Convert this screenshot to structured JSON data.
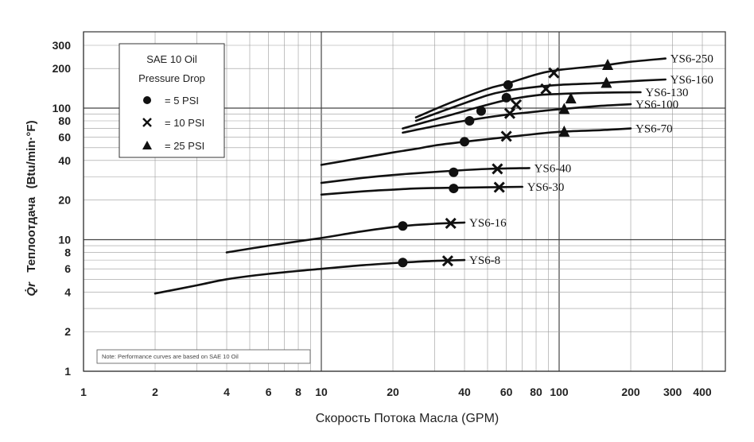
{
  "chart_data": {
    "type": "line",
    "title": "",
    "xlabel": "Скорость Потока Масла (GPM)",
    "ylabel_symbol": "Q̇r",
    "ylabel": "Теплоотдача",
    "ylabel_units": "(Btu/min·°F)",
    "xscale": "log",
    "yscale": "log",
    "xlim": [
      1,
      500
    ],
    "ylim": [
      1,
      380
    ],
    "x_ticks": [
      1,
      2,
      4,
      6,
      8,
      10,
      20,
      40,
      60,
      80,
      100,
      200,
      300,
      400
    ],
    "x_tick_labels": [
      "1",
      "2",
      "4",
      "6",
      "8",
      "10",
      "20",
      "40",
      "60",
      "80",
      "100",
      "200",
      "300",
      "400"
    ],
    "y_ticks": [
      1,
      2,
      4,
      6,
      8,
      10,
      20,
      40,
      60,
      80,
      100,
      200,
      300
    ],
    "y_tick_labels": [
      "1",
      "2",
      "4",
      "6",
      "8",
      "10",
      "20",
      "40",
      "60",
      "80",
      "100",
      "200",
      "300"
    ],
    "grid": true,
    "legend": {
      "title_line1": "SAE 10 Oil",
      "title_line2": "Pressure Drop",
      "placement": "top-left",
      "entries": [
        {
          "marker": "circle",
          "label": "= 5 PSI"
        },
        {
          "marker": "cross",
          "label": "= 10 PSI"
        },
        {
          "marker": "triangle",
          "label": "= 25 PSI"
        }
      ]
    },
    "note": "Note: Performance curves are based on SAE 10 Oil",
    "series": [
      {
        "name": "YS6-8",
        "x": [
          2,
          3,
          4,
          6,
          10,
          15,
          22,
          30,
          40
        ],
        "y": [
          3.9,
          4.5,
          5.0,
          5.5,
          6.0,
          6.4,
          6.7,
          6.9,
          7.0
        ],
        "markers": [
          {
            "type": "circle",
            "x": 22,
            "y": 6.7
          },
          {
            "type": "cross",
            "x": 34,
            "y": 6.9
          }
        ]
      },
      {
        "name": "YS6-16",
        "x": [
          4,
          6,
          10,
          15,
          22,
          30,
          40
        ],
        "y": [
          8.0,
          9.0,
          10.3,
          11.6,
          12.7,
          13.2,
          13.5
        ],
        "markers": [
          {
            "type": "circle",
            "x": 22,
            "y": 12.7
          },
          {
            "type": "cross",
            "x": 35,
            "y": 13.3
          }
        ]
      },
      {
        "name": "YS6-30",
        "x": [
          10,
          15,
          20,
          25,
          35,
          50,
          70
        ],
        "y": [
          22,
          23.3,
          24,
          24.5,
          24.8,
          25.0,
          25.2
        ],
        "markers": [
          {
            "type": "circle",
            "x": 36,
            "y": 24.5
          },
          {
            "type": "cross",
            "x": 56,
            "y": 25
          }
        ]
      },
      {
        "name": "YS6-40",
        "x": [
          10,
          15,
          20,
          25,
          35,
          50,
          75
        ],
        "y": [
          27,
          29.5,
          31,
          32,
          33.3,
          34.5,
          35.0
        ],
        "markers": [
          {
            "type": "circle",
            "x": 36,
            "y": 32.5
          },
          {
            "type": "cross",
            "x": 55,
            "y": 34.5
          }
        ]
      },
      {
        "name": "YS6-70",
        "x": [
          10,
          15,
          20,
          25,
          30,
          40,
          50,
          70,
          100,
          150,
          200
        ],
        "y": [
          37,
          42,
          46,
          49,
          52,
          55.5,
          58,
          62,
          66,
          68,
          70
        ],
        "markers": [
          {
            "type": "circle",
            "x": 40,
            "y": 55.5
          },
          {
            "type": "cross",
            "x": 60,
            "y": 61
          },
          {
            "type": "triangle",
            "x": 105,
            "y": 66
          }
        ]
      },
      {
        "name": "YS6-100",
        "x": [
          22,
          30,
          40,
          50,
          60,
          80,
          100,
          150,
          200
        ],
        "y": [
          65,
          73,
          80,
          85,
          89,
          94,
          98,
          104,
          107
        ],
        "markers": [
          {
            "type": "circle",
            "x": 42,
            "y": 80
          },
          {
            "type": "circle",
            "x": 47,
            "y": 95
          },
          {
            "type": "cross",
            "x": 62,
            "y": 91
          },
          {
            "type": "triangle",
            "x": 105,
            "y": 98
          }
        ]
      },
      {
        "name": "YS6-130",
        "x": [
          22,
          30,
          40,
          50,
          60,
          80,
          100,
          150,
          220
        ],
        "y": [
          70,
          82,
          95,
          106,
          115,
          125,
          128,
          131,
          132
        ],
        "markers": [
          {
            "type": "circle",
            "x": 60,
            "y": 120
          },
          {
            "type": "cross",
            "x": 66,
            "y": 106
          },
          {
            "type": "triangle",
            "x": 112,
            "y": 118
          }
        ]
      },
      {
        "name": "YS6-160",
        "x": [
          25,
          35,
          50,
          60,
          80,
          100,
          150,
          200,
          280
        ],
        "y": [
          80,
          100,
          125,
          135,
          145,
          150,
          155,
          160,
          165
        ],
        "markers": [
          {
            "type": "cross",
            "x": 88,
            "y": 140
          },
          {
            "type": "triangle",
            "x": 158,
            "y": 155
          }
        ]
      },
      {
        "name": "YS6-250",
        "x": [
          25,
          35,
          50,
          60,
          80,
          100,
          150,
          200,
          280
        ],
        "y": [
          85,
          110,
          140,
          153,
          180,
          195,
          210,
          225,
          238
        ],
        "markers": [
          {
            "type": "circle",
            "x": 61,
            "y": 150
          },
          {
            "type": "cross",
            "x": 95,
            "y": 185
          },
          {
            "type": "triangle",
            "x": 160,
            "y": 212
          }
        ]
      }
    ],
    "colors": {
      "curve": "#111111",
      "grid": "#9a9a9a",
      "background": "#ffffff"
    }
  }
}
